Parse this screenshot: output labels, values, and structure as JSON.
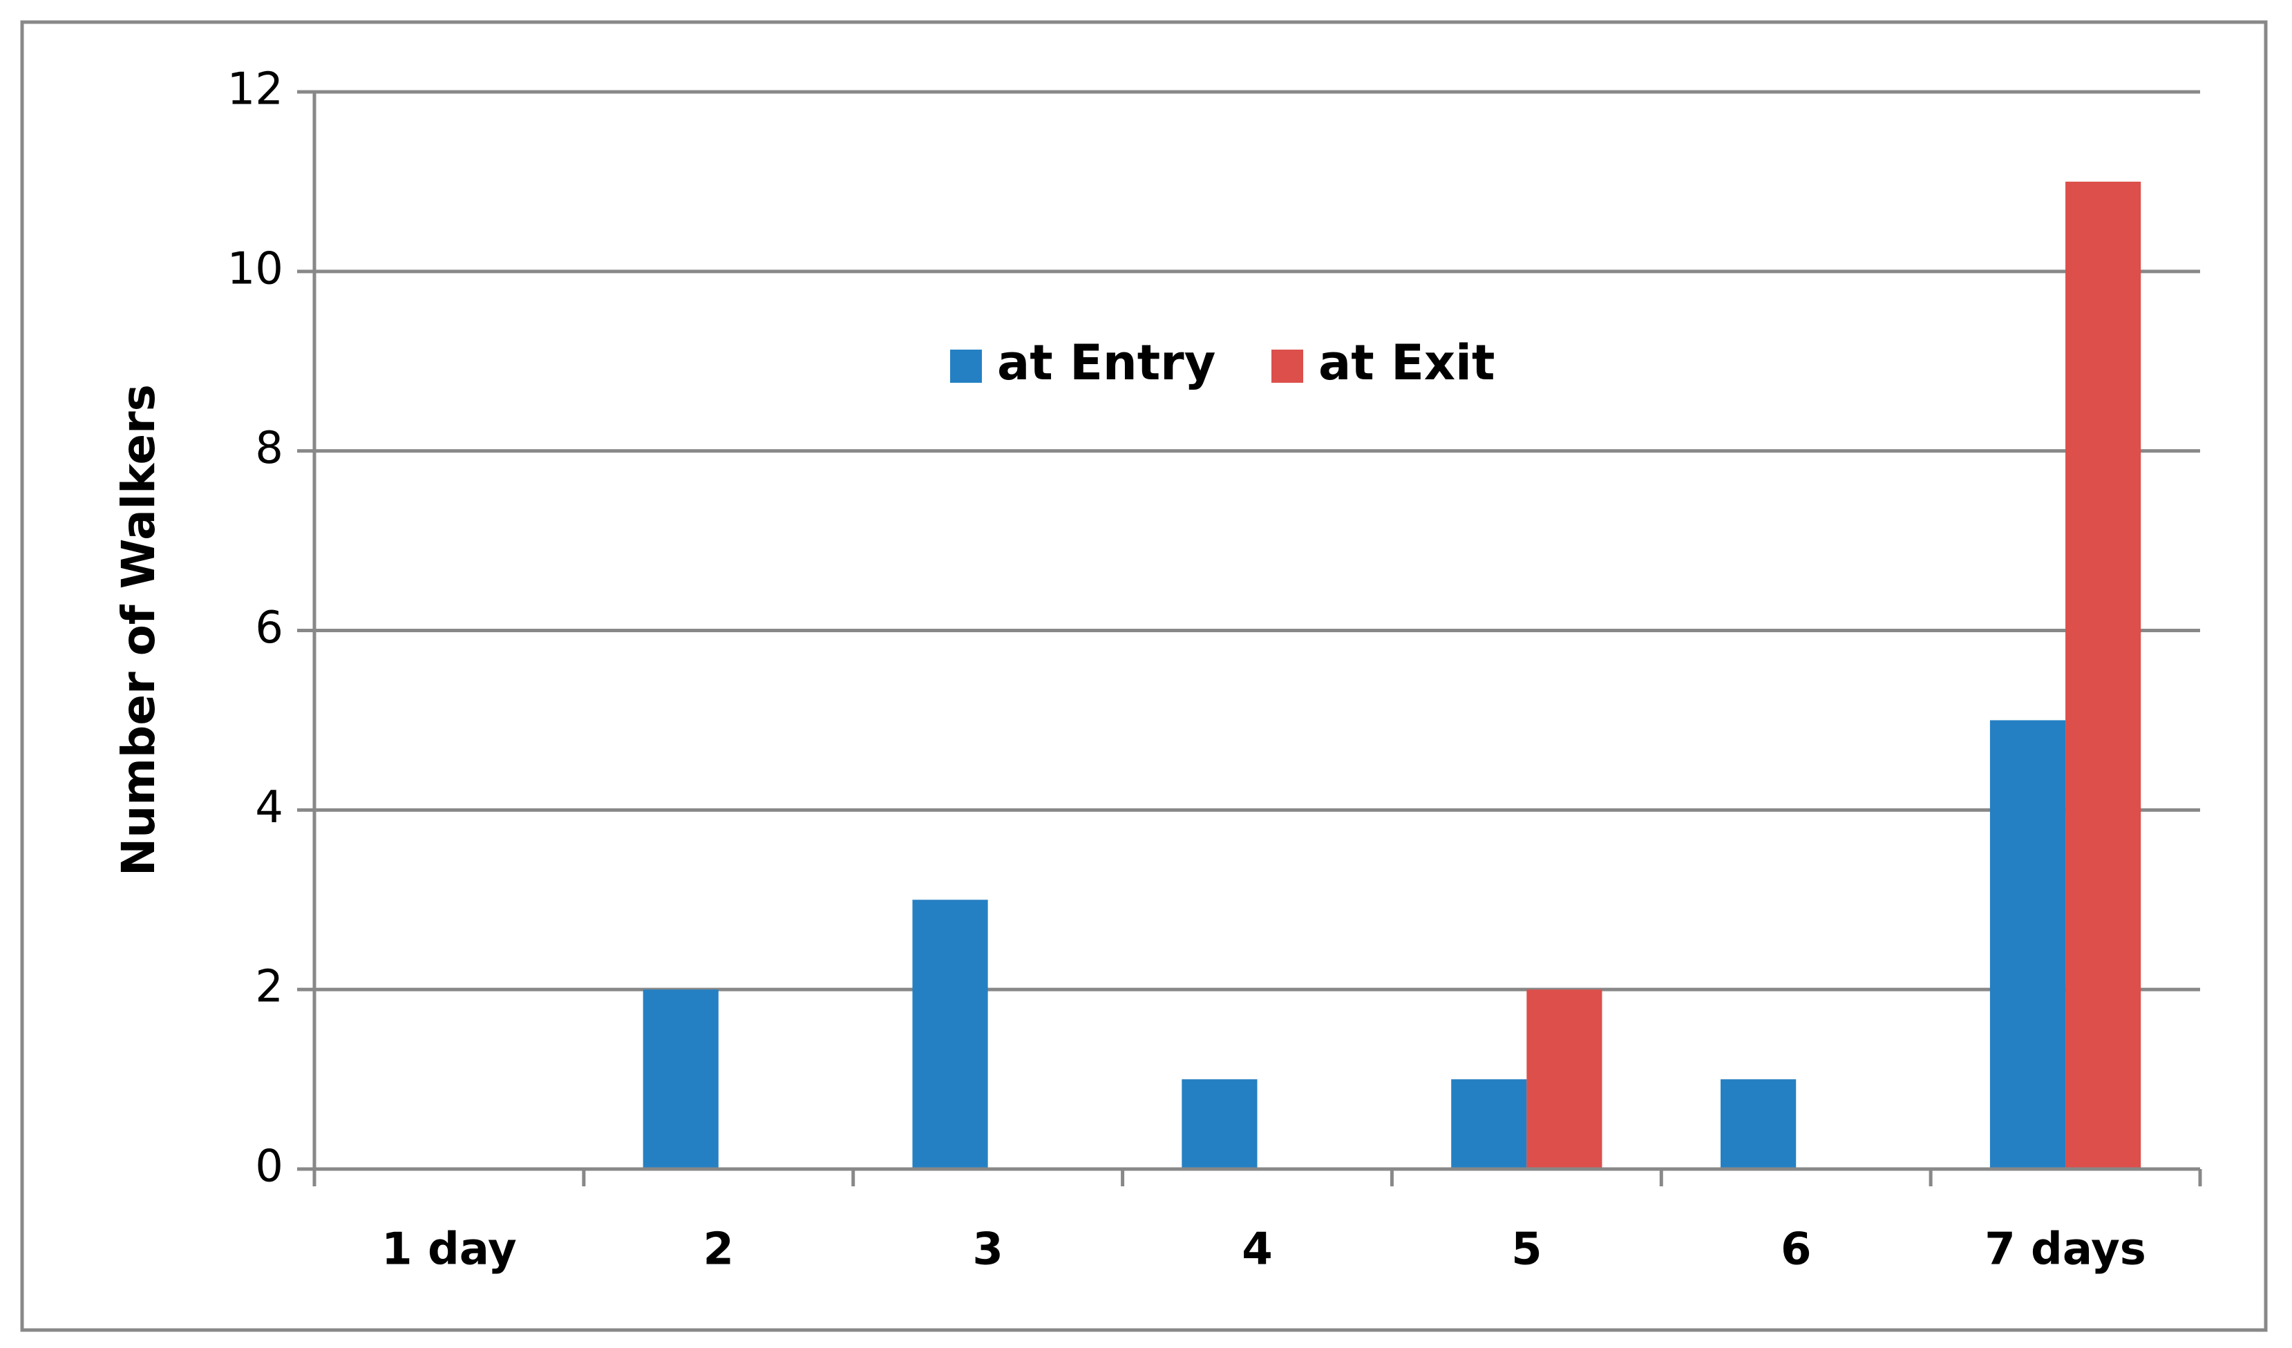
{
  "chart_data": {
    "type": "bar",
    "y_label": "Number of Walkers",
    "categories": [
      "1 day",
      "2",
      "3",
      "4",
      "5",
      "6",
      "7 days"
    ],
    "series": [
      {
        "name": "at Entry",
        "color": "#2580c3",
        "values": [
          0,
          2,
          3,
          1,
          1,
          1,
          5
        ]
      },
      {
        "name": "at Exit",
        "color": "#dc4f4b",
        "values": [
          0,
          0,
          0,
          0,
          2,
          0,
          11
        ]
      }
    ],
    "ylim": [
      0,
      12
    ],
    "yticks": [
      0,
      2,
      4,
      6,
      8,
      10,
      12
    ],
    "grid": true,
    "legend": "top"
  }
}
